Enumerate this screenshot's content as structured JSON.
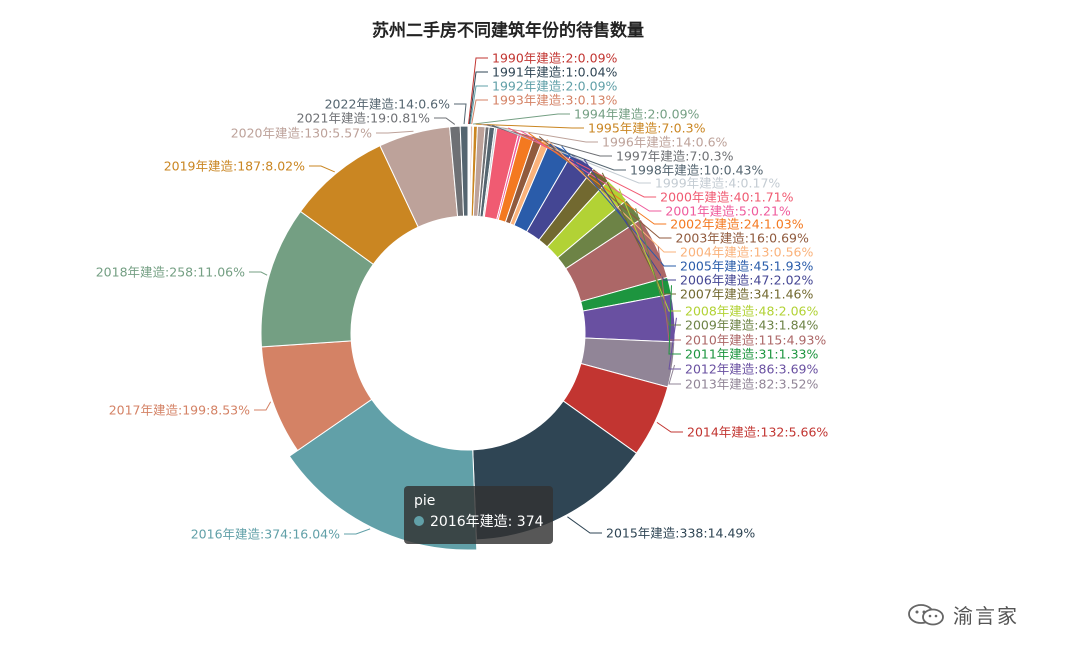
{
  "chart_data": {
    "type": "pie",
    "title": "苏州二手房不同建筑年份的待售数量",
    "series_name": "pie",
    "slices": [
      {
        "label": "1990年建造:2:0.09%",
        "name": "1990年建造",
        "value": 2,
        "color": "#c23531"
      },
      {
        "label": "1991年建造:1:0.04%",
        "name": "1991年建造",
        "value": 1,
        "color": "#2f4554"
      },
      {
        "label": "1992年建造:2:0.09%",
        "name": "1992年建造",
        "value": 2,
        "color": "#61a0a8"
      },
      {
        "label": "1993年建造:3:0.13%",
        "name": "1993年建造",
        "value": 3,
        "color": "#d48265"
      },
      {
        "label": "1994年建造:2:0.09%",
        "name": "1994年建造",
        "value": 2,
        "color": "#749f83"
      },
      {
        "label": "1995年建造:7:0.3%",
        "name": "1995年建造",
        "value": 7,
        "color": "#ca8622"
      },
      {
        "label": "1996年建造:14:0.6%",
        "name": "1996年建造",
        "value": 14,
        "color": "#bda29a"
      },
      {
        "label": "1997年建造:7:0.3%",
        "name": "1997年建造",
        "value": 7,
        "color": "#6e7074"
      },
      {
        "label": "1998年建造:10:0.43%",
        "name": "1998年建造",
        "value": 10,
        "color": "#546570"
      },
      {
        "label": "1999年建造:4:0.17%",
        "name": "1999年建造",
        "value": 4,
        "color": "#c4ccd3"
      },
      {
        "label": "2000年建造:40:1.71%",
        "name": "2000年建造",
        "value": 40,
        "color": "#f05b72"
      },
      {
        "label": "2001年建造:5:0.21%",
        "name": "2001年建造",
        "value": 5,
        "color": "#ef5b9c"
      },
      {
        "label": "2002年建造:24:1.03%",
        "name": "2002年建造",
        "value": 24,
        "color": "#f47920"
      },
      {
        "label": "2003年建造:16:0.69%",
        "name": "2003年建造",
        "value": 16,
        "color": "#905a3d"
      },
      {
        "label": "2004年建造:13:0.56%",
        "name": "2004年建造",
        "value": 13,
        "color": "#fab27b"
      },
      {
        "label": "2005年建造:45:1.93%",
        "name": "2005年建造",
        "value": 45,
        "color": "#2a5caa"
      },
      {
        "label": "2006年建造:47:2.02%",
        "name": "2006年建造",
        "value": 47,
        "color": "#444693"
      },
      {
        "label": "2007年建造:34:1.46%",
        "name": "2007年建造",
        "value": 34,
        "color": "#726930"
      },
      {
        "label": "2008年建造:48:2.06%",
        "name": "2008年建造",
        "value": 48,
        "color": "#b2d235"
      },
      {
        "label": "2009年建造:43:1.84%",
        "name": "2009年建造",
        "value": 43,
        "color": "#6d8346"
      },
      {
        "label": "2010年建造:115:4.93%",
        "name": "2010年建造",
        "value": 115,
        "color": "#ac6767"
      },
      {
        "label": "2011年建造:31:1.33%",
        "name": "2011年建造",
        "value": 31,
        "color": "#1d953f"
      },
      {
        "label": "2012年建造:86:3.69%",
        "name": "2012年建造",
        "value": 86,
        "color": "#6950a1"
      },
      {
        "label": "2013年建造:82:3.52%",
        "name": "2013年建造",
        "value": 82,
        "color": "#918597"
      },
      {
        "label": "2014年建造:132:5.66%",
        "name": "2014年建造",
        "value": 132,
        "color": "#c23531"
      },
      {
        "label": "2015年建造:338:14.49%",
        "name": "2015年建造",
        "value": 338,
        "color": "#2f4554"
      },
      {
        "label": "2016年建造:374:16.04%",
        "name": "2016年建造",
        "value": 374,
        "color": "#61a0a8"
      },
      {
        "label": "2017年建造:199:8.53%",
        "name": "2017年建造",
        "value": 199,
        "color": "#d48265"
      },
      {
        "label": "2018年建造:258:11.06%",
        "name": "2018年建造",
        "value": 258,
        "color": "#749f83"
      },
      {
        "label": "2019年建造:187:8.02%",
        "name": "2019年建造",
        "value": 187,
        "color": "#ca8622"
      },
      {
        "label": "2020年建造:130:5.57%",
        "name": "2020年建造",
        "value": 130,
        "color": "#bda29a"
      },
      {
        "label": "2021年建造:19:0.81%",
        "name": "2021年建造",
        "value": 19,
        "color": "#6e7074"
      },
      {
        "label": "2022年建造:14:0.6%",
        "name": "2022年建造",
        "value": 14,
        "color": "#546570"
      }
    ],
    "highlighted": "2016年建造"
  },
  "tooltip": {
    "series": "pie",
    "row": "2016年建造: 374",
    "dot_color": "#61a0a8"
  },
  "watermark": {
    "text": "渝言家",
    "icon": "wechat-icon"
  }
}
